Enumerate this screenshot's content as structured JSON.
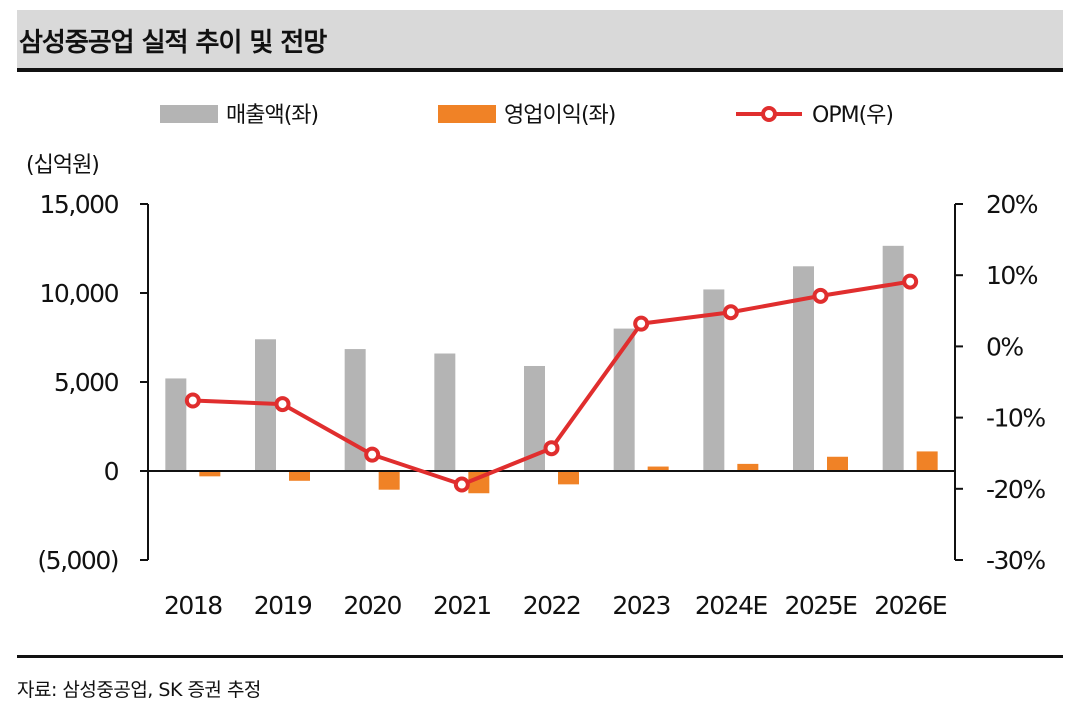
{
  "title": "삼성중공업 실적 추이 및 전망",
  "source": "자료: 삼성중공업, SK 증권 추정",
  "chart_data": {
    "type": "bar",
    "unit_label": "(십억원)",
    "categories": [
      "2018",
      "2019",
      "2020",
      "2021",
      "2022",
      "2023",
      "2024E",
      "2025E",
      "2026E"
    ],
    "series": [
      {
        "name": "매출액(좌)",
        "type": "bar",
        "axis": "left",
        "color": "#b4b4b4",
        "values": [
          5200,
          7400,
          6850,
          6600,
          5900,
          8000,
          10200,
          11500,
          12650
        ]
      },
      {
        "name": "영업이익(좌)",
        "type": "bar",
        "axis": "left",
        "color": "#f08226",
        "values": [
          -300,
          -550,
          -1050,
          -1250,
          -750,
          250,
          400,
          800,
          1100
        ]
      },
      {
        "name": "OPM(우)",
        "type": "line",
        "axis": "right",
        "color": "#e02e2e",
        "values": [
          -7.6,
          -8.1,
          -15.2,
          -19.4,
          -14.3,
          3.2,
          4.8,
          7.1,
          9.1
        ]
      }
    ],
    "left_axis": {
      "min": -5000,
      "max": 15000,
      "ticks": [
        15000,
        10000,
        5000,
        0,
        -5000
      ],
      "tick_labels": [
        "15,000",
        "10,000",
        "5,000",
        "0",
        "(5,000)"
      ]
    },
    "right_axis": {
      "min": -30,
      "max": 20,
      "ticks": [
        20,
        10,
        0,
        -10,
        -20,
        -30
      ],
      "tick_labels": [
        "20%",
        "10%",
        "0%",
        "-10%",
        "-20%",
        "-30%"
      ]
    },
    "legend": [
      "매출액(좌)",
      "영업이익(좌)",
      "OPM(우)"
    ],
    "legend_position": "top"
  }
}
